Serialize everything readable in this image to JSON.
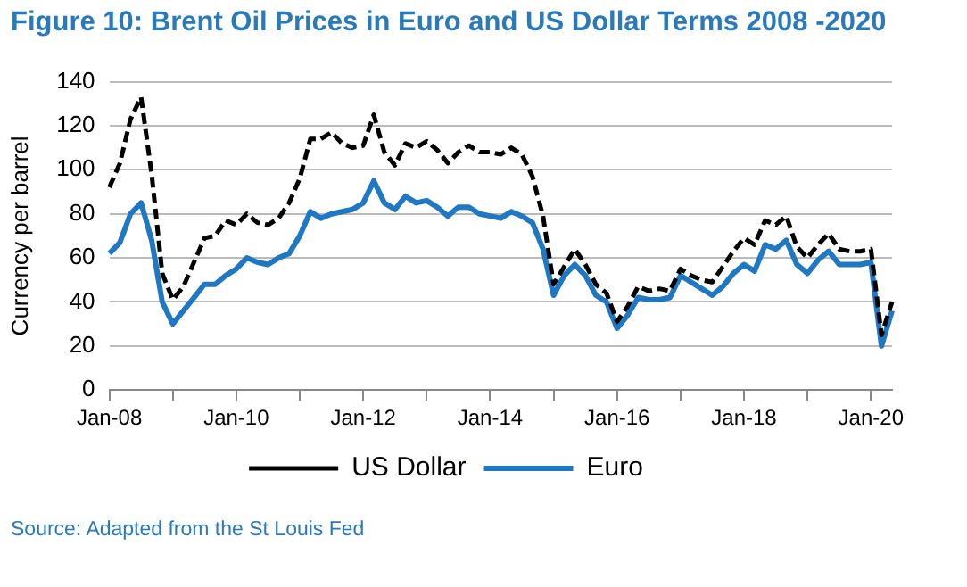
{
  "chart_data": {
    "type": "line",
    "title": "Figure 10: Brent Oil Prices in Euro and US Dollar Terms  2008 -2020",
    "ylabel": "Currency per barrel",
    "categories": [
      "Jan-08",
      null,
      null,
      null,
      null,
      null,
      null,
      null,
      null,
      null,
      null,
      null,
      "Jan-10",
      null,
      null,
      null,
      null,
      null,
      null,
      null,
      null,
      null,
      null,
      null,
      "Jan-12",
      null,
      null,
      null,
      null,
      null,
      null,
      null,
      null,
      null,
      null,
      null,
      "Jan-14",
      null,
      null,
      null,
      null,
      null,
      null,
      null,
      null,
      null,
      null,
      null,
      "Jan-16",
      null,
      null,
      null,
      null,
      null,
      null,
      null,
      null,
      null,
      null,
      null,
      "Jan-18",
      null,
      null,
      null,
      null,
      null,
      null,
      null,
      null,
      null,
      null,
      null,
      "Jan-20",
      null,
      null
    ],
    "series": [
      {
        "name": "US Dollar",
        "color": "#000000",
        "line_style": "dashed",
        "values": [
          92,
          103,
          123,
          133,
          98,
          53,
          41,
          47,
          58,
          69,
          70,
          77,
          75,
          80,
          76,
          75,
          78,
          85,
          96,
          114,
          114,
          117,
          112,
          110,
          111,
          125,
          108,
          102,
          112,
          110,
          113,
          109,
          103,
          108,
          111,
          108,
          108,
          107,
          110,
          107,
          97,
          79,
          48,
          56,
          64,
          57,
          48,
          44,
          31,
          38,
          47,
          45,
          46,
          45,
          55,
          52,
          50,
          49,
          56,
          63,
          69,
          66,
          77,
          75,
          79,
          65,
          60,
          66,
          71,
          64,
          63,
          63,
          64,
          25,
          40
        ]
      },
      {
        "name": "Euro",
        "color": "#1f78c1",
        "line_style": "solid",
        "values": [
          62,
          67,
          80,
          85,
          68,
          40,
          30,
          36,
          42,
          48,
          48,
          52,
          55,
          60,
          58,
          57,
          60,
          62,
          70,
          81,
          78,
          80,
          81,
          82,
          85,
          95,
          85,
          82,
          88,
          85,
          86,
          83,
          79,
          83,
          83,
          80,
          79,
          78,
          81,
          79,
          76,
          64,
          43,
          52,
          57,
          52,
          43,
          40,
          28,
          34,
          42,
          41,
          41,
          42,
          52,
          49,
          46,
          43,
          47,
          53,
          57,
          54,
          66,
          64,
          68,
          57,
          53,
          59,
          63,
          57,
          57,
          57,
          58,
          20,
          36
        ]
      }
    ],
    "ylim": [
      0,
      140
    ],
    "yticks": [
      0,
      20,
      40,
      60,
      80,
      100,
      120,
      140
    ],
    "grid": "y",
    "legend": "bottom",
    "marker": "none",
    "annotations": [
      "Source: Adapted from the St Louis Fed"
    ]
  }
}
